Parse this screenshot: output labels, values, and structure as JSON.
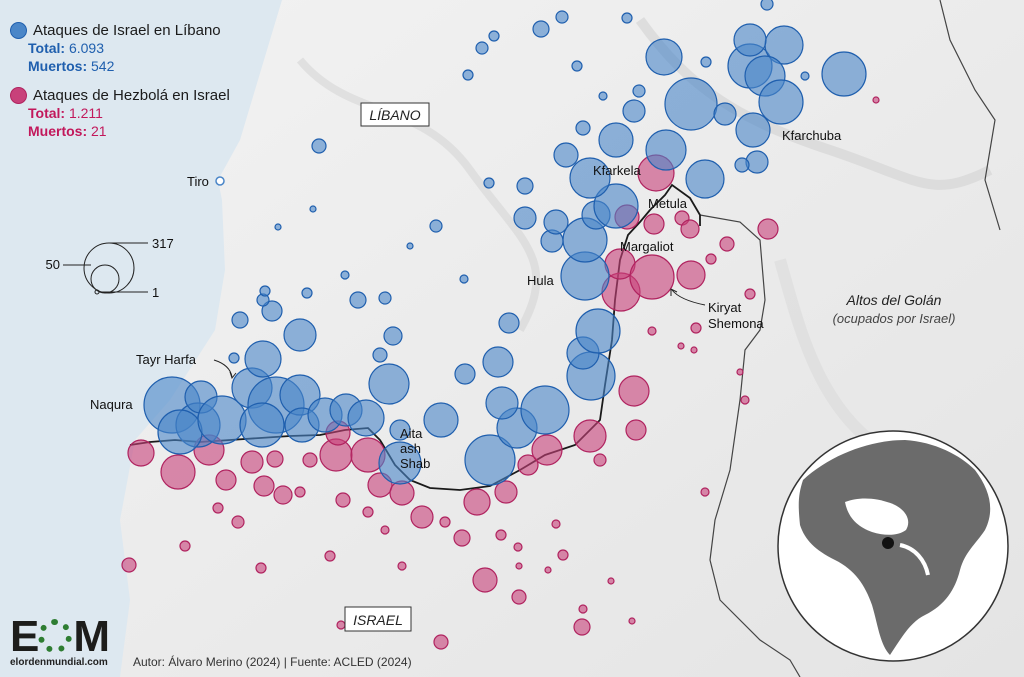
{
  "legend": {
    "israel_attacks": {
      "label": "Ataques de Israel en Líbano",
      "total_label": "Total:",
      "total_value": "6.093",
      "deaths_label": "Muertos:",
      "deaths_value": "542",
      "color": "#4a86c8"
    },
    "hezbollah_attacks": {
      "label": "Ataques de Hezbolá en Israel",
      "total_label": "Total:",
      "total_value": "1.211",
      "deaths_label": "Muertos:",
      "deaths_value": "21",
      "color": "#c8417a"
    },
    "size_scale": {
      "large": "317",
      "mid": "50",
      "small": "1"
    }
  },
  "map": {
    "country_labels": {
      "lebanon": "LÍBANO",
      "israel": "ISRAEL"
    },
    "region_label": {
      "name": "Altos del Golán",
      "note": "(ocupados por Israel)"
    },
    "places": {
      "tiro": "Tiro",
      "kfarchuba": "Kfarchuba",
      "kfarkela": "Kfarkela",
      "metula": "Metula",
      "margaliot": "Margaliot",
      "hula": "Hula",
      "kiryat_l1": "Kiryat",
      "kiryat_l2": "Shemona",
      "tayr_harfa": "Tayr Harfa",
      "naqura": "Naqura",
      "aita_l1": "Aita",
      "aita_l2": "ash",
      "aita_l3": "Shab"
    }
  },
  "footer": {
    "brand_prefix": "E",
    "brand_suffix": "M",
    "brand_url": "elordenmundial.com",
    "credit": "Autor: Álvaro Merino (2024) | Fuente: ACLED (2024)"
  }
}
